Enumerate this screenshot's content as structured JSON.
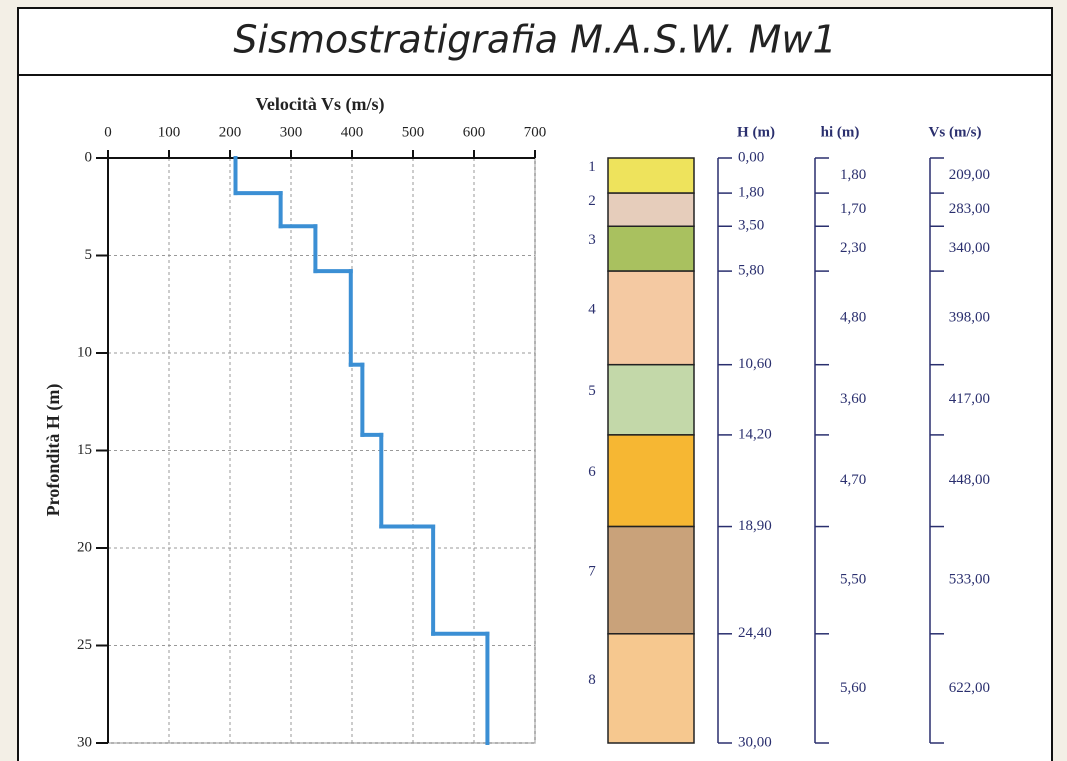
{
  "title": "Sismostratigrafia M.A.S.W. Mw1",
  "chart_data": {
    "type": "step",
    "x_label": "Velocità Vs (m/s)",
    "y_label": "Profondità H (m)",
    "xlim": [
      0,
      700
    ],
    "xticks": [
      0,
      100,
      200,
      300,
      400,
      500,
      600,
      700
    ],
    "ylim": [
      0,
      30
    ],
    "yticks": [
      0,
      5,
      10,
      15,
      20,
      25,
      30
    ],
    "y_inverted": true,
    "grid": true,
    "color": "#3b8fd4",
    "column_headers": [
      "H (m)",
      "hi (m)",
      "Vs (m/s)"
    ],
    "layers": [
      1,
      2,
      3,
      4,
      5,
      6,
      7,
      8
    ],
    "layer_colors": [
      "#eee35c",
      "#e6cdbb",
      "#a9c15f",
      "#f4c9a2",
      "#c3d8a9",
      "#f6b733",
      "#c9a27a",
      "#f6c88f"
    ],
    "depths": [
      0,
      1.8,
      3.5,
      5.8,
      10.6,
      14.2,
      18.9,
      24.4,
      30
    ],
    "depth_labels": [
      "0,00",
      "1,80",
      "3,50",
      "5,80",
      "10,60",
      "14,20",
      "18,90",
      "24,40",
      "30,00"
    ],
    "thicknesses": [
      1.8,
      1.7,
      2.3,
      4.8,
      3.6,
      4.7,
      5.5,
      5.6
    ],
    "thickness_labels": [
      "1,80",
      "1,70",
      "2,30",
      "4,80",
      "3,60",
      "4,70",
      "5,50",
      "5,60"
    ],
    "velocities": [
      209,
      283,
      340,
      398,
      417,
      448,
      533,
      622
    ],
    "velocity_labels": [
      "209,00",
      "283,00",
      "340,00",
      "398,00",
      "417,00",
      "448,00",
      "533,00",
      "622,00"
    ]
  }
}
